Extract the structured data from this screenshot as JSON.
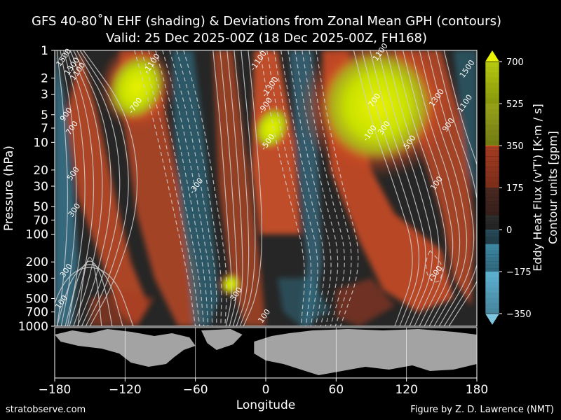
{
  "title_line1": "GFS 40-80˚N EHF (shading) & Deviations from Zonal Mean GPH (contours)",
  "title_line2": "Valid: 25 Dec 2025-00Z  (18 Dec 2025-00Z, FH168)",
  "footer_left": "stratobserve.com",
  "footer_right": "Figure by Z. D. Lawrence (NMT)",
  "chart_data": {
    "type": "heatmap",
    "xlabel": "Longitude",
    "ylabel": "Pressure (hPa)",
    "xlim": [
      -180,
      180
    ],
    "ylim": [
      1000,
      1
    ],
    "xticks": [
      -180,
      -120,
      -60,
      0,
      60,
      120,
      180
    ],
    "xtick_labels": [
      "−180",
      "−120",
      "−60",
      "0",
      "60",
      "120",
      "180"
    ],
    "yticks": [
      1,
      2,
      3,
      5,
      7,
      10,
      20,
      30,
      50,
      70,
      100,
      200,
      300,
      500,
      700,
      1000
    ],
    "colorbar": {
      "label1": "Eddy Heat Flux (v'T')  [K·m / s]",
      "label2": "Contour units [gpm]",
      "ticks": [
        700,
        525,
        350,
        175,
        0,
        -175,
        -350
      ],
      "tick_labels": [
        "700",
        "525",
        "350",
        "175",
        "0",
        "−175",
        "−350"
      ],
      "range": [
        -350,
        700
      ]
    },
    "flux_features": [
      {
        "lon": -110,
        "p": 2.5,
        "peak": 560
      },
      {
        "lon": 95,
        "p": 4,
        "peak": 620
      },
      {
        "lon": 5,
        "p": 7,
        "peak": 420
      },
      {
        "lon": -30,
        "p": 350,
        "peak": 380
      }
    ],
    "contour_labels": [
      {
        "text": "1500",
        "lon": -172,
        "p": 1.2
      },
      {
        "text": "1300",
        "lon": -165,
        "p": 1.5
      },
      {
        "text": "1100",
        "lon": -160,
        "p": 1.7
      },
      {
        "text": "900",
        "lon": -170,
        "p": 5
      },
      {
        "text": "700",
        "lon": -165,
        "p": 7
      },
      {
        "text": "500",
        "lon": -164,
        "p": 22
      },
      {
        "text": "300",
        "lon": -163,
        "p": 55
      },
      {
        "text": "300",
        "lon": -170,
        "p": 250
      },
      {
        "text": "100",
        "lon": -174,
        "p": 550
      },
      {
        "text": "-1100",
        "lon": -97,
        "p": 1.4
      },
      {
        "text": "-700",
        "lon": -111,
        "p": 4
      },
      {
        "text": "-1100",
        "lon": -6,
        "p": 1.3
      },
      {
        "text": "-1300",
        "lon": 4,
        "p": 2.5
      },
      {
        "text": "-900",
        "lon": 0,
        "p": 4
      },
      {
        "text": "-500",
        "lon": 2,
        "p": 10
      },
      {
        "text": "-300",
        "lon": -59,
        "p": 30
      },
      {
        "text": "300",
        "lon": -25,
        "p": 450
      },
      {
        "text": "100",
        "lon": -1,
        "p": 780
      },
      {
        "text": "1100",
        "lon": 98,
        "p": 1.05
      },
      {
        "text": "700",
        "lon": 93,
        "p": 3.5
      },
      {
        "text": "300",
        "lon": 101,
        "p": 7
      },
      {
        "text": "-100",
        "lon": 89,
        "p": 8
      },
      {
        "text": "500",
        "lon": 123,
        "p": 10
      },
      {
        "text": "1300",
        "lon": 146,
        "p": 3.3
      },
      {
        "text": "900",
        "lon": 156,
        "p": 6.5
      },
      {
        "text": "1100",
        "lon": 170,
        "p": 3.8
      },
      {
        "text": "1500",
        "lon": 172,
        "p": 1.6
      },
      {
        "text": "100",
        "lon": 146,
        "p": 28
      },
      {
        "text": "-300",
        "lon": 145,
        "p": 270
      }
    ]
  }
}
